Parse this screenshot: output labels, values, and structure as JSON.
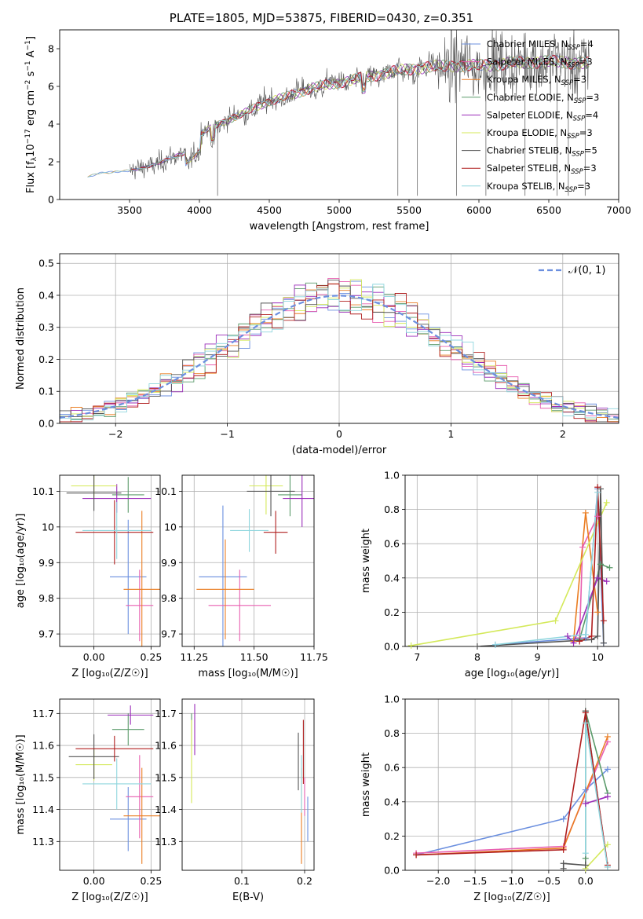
{
  "title": "PLATE=1805, MJD=53875, FIBERID=0430, z=0.351",
  "colors": {
    "series": [
      "#6b8fdf",
      "#e85fb0",
      "#ea7d22",
      "#5a9a6a",
      "#9b2cba",
      "#d4e95a",
      "#545454",
      "#b01f1f",
      "#8fd6de"
    ],
    "normal": "#6b8fdf",
    "grid": "#b0b0b0"
  },
  "series_names": [
    "Chabrier MILES",
    "Salpeter MILES",
    "Kroupa MILES",
    "Chabrier ELODIE",
    "Salpeter ELODIE",
    "Kroupa ELODIE",
    "Chabrier STELIB",
    "Salpeter STELIB",
    "Kroupa STELIB"
  ],
  "nssp": [
    4,
    3,
    3,
    3,
    4,
    3,
    5,
    3,
    3
  ],
  "nssp_label": "SSP",
  "chart_data": [
    {
      "id": "spectrum",
      "type": "line",
      "title": "PLATE=1805, MJD=53875, FIBERID=0430, z=0.351",
      "xlabel": "wavelength [Angstrom, rest frame]",
      "ylabel_parts": [
        "Flux [f",
        "λ",
        "10",
        "−17",
        " erg cm",
        "−2",
        " s",
        "−1",
        " A",
        "−1",
        "]"
      ],
      "xlim": [
        3000,
        7000
      ],
      "ylim": [
        0,
        9
      ],
      "xticks": [
        3500,
        4000,
        4500,
        5000,
        5500,
        6000,
        6500,
        7000
      ],
      "yticks": [
        0,
        2,
        4,
        6,
        8
      ],
      "legend": "upper right",
      "grid": false,
      "continuum": {
        "x": [
          3200,
          3300,
          3400,
          3500,
          3600,
          3700,
          3800,
          3900,
          4000,
          4100,
          4200,
          4300,
          4400,
          4500,
          4600,
          4800,
          5000,
          5200,
          5400,
          5600,
          5800,
          6000,
          6200,
          6400,
          6600,
          6800
        ],
        "y": [
          1.2,
          1.4,
          1.5,
          1.5,
          1.7,
          1.9,
          2.2,
          2.5,
          3.4,
          3.9,
          4.2,
          4.5,
          4.9,
          5.2,
          5.4,
          5.9,
          6.2,
          6.5,
          6.8,
          7.0,
          7.1,
          7.1,
          7.2,
          7.3,
          7.3,
          7.2
        ]
      }
    },
    {
      "id": "residuals",
      "type": "histogram",
      "xlabel": "(data-model)/error",
      "ylabel": "Normed distribution",
      "xlim": [
        -2.5,
        2.5
      ],
      "ylim": [
        0,
        0.53
      ],
      "xticks": [
        -2,
        -1,
        0,
        1,
        2
      ],
      "yticks": [
        0.0,
        0.1,
        0.2,
        0.3,
        0.4,
        0.5
      ],
      "grid": true,
      "legend": "upper right",
      "legend_label": "𝒩(0, 1)",
      "bin_edges": [
        -2.5,
        -2.4,
        -2.3,
        -2.2,
        -2.1,
        -2.0,
        -1.9,
        -1.8,
        -1.7,
        -1.6,
        -1.5,
        -1.4,
        -1.3,
        -1.2,
        -1.1,
        -1.0,
        -0.9,
        -0.8,
        -0.7,
        -0.6,
        -0.5,
        -0.4,
        -0.3,
        -0.2,
        -0.1,
        0.0,
        0.1,
        0.2,
        0.3,
        0.4,
        0.5,
        0.6,
        0.7,
        0.8,
        0.9,
        1.0,
        1.1,
        1.2,
        1.3,
        1.4,
        1.5,
        1.6,
        1.7,
        1.8,
        1.9,
        2.0,
        2.1,
        2.2,
        2.3,
        2.4,
        2.5
      ],
      "normal_curve": {
        "mu": 0,
        "sigma": 1
      }
    },
    {
      "id": "z_age",
      "type": "errorbar",
      "xlabel": "Z [log₁₀(Z/Z☉)]",
      "ylabel": "age  [log₁₀(age/yr)]",
      "xlim": [
        -0.15,
        0.29
      ],
      "ylim": [
        9.665,
        10.145
      ],
      "xticks": [
        0.0,
        0.25
      ],
      "xticklabels": [
        "0.00",
        "0.25"
      ],
      "yticks": [
        9.7,
        9.8,
        9.9,
        10.0,
        10.1
      ],
      "grid": true,
      "points": [
        {
          "x": 0.15,
          "xerr": 0.08,
          "y": 9.86,
          "yerr": 0.16
        },
        {
          "x": 0.2,
          "xerr": 0.06,
          "y": 9.78,
          "yerr": 0.1
        },
        {
          "x": 0.21,
          "xerr": 0.08,
          "y": 9.825,
          "yerr": 0.22
        },
        {
          "x": 0.15,
          "xerr": 0.07,
          "y": 10.09,
          "yerr": 0.05
        },
        {
          "x": 0.1,
          "xerr": 0.15,
          "y": 10.08,
          "yerr": 0.04
        },
        {
          "x": 0.0,
          "xerr": 0.1,
          "y": 10.115,
          "yerr": 0.03
        },
        {
          "x": 0.0,
          "xerr": 0.12,
          "y": 10.095,
          "yerr": 0.05
        },
        {
          "x": 0.09,
          "xerr": 0.17,
          "y": 9.985,
          "yerr": 0.09
        },
        {
          "x": 0.1,
          "xerr": 0.15,
          "y": 9.99,
          "yerr": 0.08
        }
      ]
    },
    {
      "id": "mass_age",
      "type": "errorbar",
      "xlabel": "mass [log₁₀(M/M☉)]",
      "ylabel": "",
      "xlim": [
        11.2,
        11.75
      ],
      "ylim": [
        9.665,
        10.145
      ],
      "xticks": [
        11.25,
        11.5,
        11.75
      ],
      "xticklabels": [
        "11.25",
        "11.50",
        "11.75"
      ],
      "yticks": [
        9.7,
        9.8,
        9.9,
        10.0,
        10.1
      ],
      "grid": true,
      "points": [
        {
          "x": 11.37,
          "xerr": 0.1,
          "y": 9.86,
          "yerr": 0.2
        },
        {
          "x": 11.44,
          "xerr": 0.13,
          "y": 9.78,
          "yerr": 0.1
        },
        {
          "x": 11.38,
          "xerr": 0.12,
          "y": 9.825,
          "yerr": 0.14
        },
        {
          "x": 11.65,
          "xerr": 0.05,
          "y": 10.09,
          "yerr": 0.06
        },
        {
          "x": 11.7,
          "xerr": 0.08,
          "y": 10.08,
          "yerr": 0.08
        },
        {
          "x": 11.55,
          "xerr": 0.07,
          "y": 10.115,
          "yerr": 0.08
        },
        {
          "x": 11.57,
          "xerr": 0.1,
          "y": 10.1,
          "yerr": 0.07
        },
        {
          "x": 11.59,
          "xerr": 0.05,
          "y": 9.985,
          "yerr": 0.06
        },
        {
          "x": 11.48,
          "xerr": 0.08,
          "y": 9.99,
          "yerr": 0.06
        }
      ]
    },
    {
      "id": "age_weight",
      "type": "line",
      "xlabel": "age  [log₁₀(age/yr)]",
      "ylabel": "mass weight",
      "xlim": [
        6.8,
        10.35
      ],
      "ylim": [
        0,
        1
      ],
      "xticks": [
        7,
        8,
        9,
        10
      ],
      "yticks": [
        0.0,
        0.2,
        0.4,
        0.6,
        0.8,
        1.0
      ],
      "grid": true,
      "series": [
        {
          "x": [
            8.3,
            9.8,
            10.0,
            10.1
          ],
          "y": [
            0.01,
            0.05,
            0.92,
            0.02
          ]
        },
        {
          "x": [
            9.7,
            9.75,
            10.0
          ],
          "y": [
            0.05,
            0.58,
            0.76
          ]
        },
        {
          "x": [
            9.6,
            9.8,
            10.0
          ],
          "y": [
            0.03,
            0.78,
            0.2
          ]
        },
        {
          "x": [
            9.7,
            10.05,
            10.2
          ],
          "y": [
            0.04,
            0.48,
            0.46
          ]
        },
        {
          "x": [
            9.5,
            9.6,
            10.0,
            10.15
          ],
          "y": [
            0.06,
            0.02,
            0.4,
            0.38
          ]
        },
        {
          "x": [
            6.9,
            9.3,
            10.15
          ],
          "y": [
            0.005,
            0.15,
            0.84
          ]
        },
        {
          "x": [
            8.0,
            9.9,
            10.0,
            10.05,
            10.1
          ],
          "y": [
            0.0,
            0.04,
            0.06,
            0.92,
            0.02
          ]
        },
        {
          "x": [
            9.7,
            9.9,
            10.0,
            10.1
          ],
          "y": [
            0.03,
            0.06,
            0.93,
            0.15
          ]
        },
        {
          "x": [
            8.3,
            9.8,
            10.0
          ],
          "y": [
            0.01,
            0.07,
            0.9
          ]
        }
      ]
    },
    {
      "id": "z_mass",
      "type": "errorbar",
      "xlabel": "Z [log₁₀(Z/Z☉)]",
      "ylabel": "mass [log₁₀(M/M☉)]",
      "xlim": [
        -0.15,
        0.29
      ],
      "ylim": [
        11.21,
        11.745
      ],
      "xticks": [
        0.0,
        0.25
      ],
      "xticklabels": [
        "0.00",
        "0.25"
      ],
      "yticks": [
        11.3,
        11.4,
        11.5,
        11.6,
        11.7
      ],
      "grid": true,
      "points": [
        {
          "x": 0.15,
          "xerr": 0.08,
          "y": 11.37,
          "yerr": 0.1
        },
        {
          "x": 0.2,
          "xerr": 0.06,
          "y": 11.44,
          "yerr": 0.13
        },
        {
          "x": 0.21,
          "xerr": 0.08,
          "y": 11.38,
          "yerr": 0.15
        },
        {
          "x": 0.15,
          "xerr": 0.07,
          "y": 11.65,
          "yerr": 0.05
        },
        {
          "x": 0.16,
          "xerr": 0.1,
          "y": 11.695,
          "yerr": 0.03
        },
        {
          "x": 0.0,
          "xerr": 0.08,
          "y": 11.54,
          "yerr": 0.05
        },
        {
          "x": 0.0,
          "xerr": 0.11,
          "y": 11.565,
          "yerr": 0.07
        },
        {
          "x": 0.09,
          "xerr": 0.17,
          "y": 11.59,
          "yerr": 0.04
        },
        {
          "x": 0.1,
          "xerr": 0.15,
          "y": 11.48,
          "yerr": 0.08
        }
      ]
    },
    {
      "id": "ebv_mass",
      "type": "errorbar",
      "xlabel": "E(B-V)",
      "ylabel": "",
      "xlim": [
        0.005,
        0.215
      ],
      "ylim": [
        11.21,
        11.745
      ],
      "xticks": [
        0.1,
        0.2
      ],
      "xticklabels": [
        "0.1",
        "0.2"
      ],
      "yticks": [
        11.3,
        11.4,
        11.5,
        11.6,
        11.7
      ],
      "grid": true,
      "points": [
        {
          "x": 0.205,
          "xerr": 0.0,
          "y": 11.37,
          "yerr": 0.07
        },
        {
          "x": 0.2,
          "xerr": 0.0,
          "y": 11.44,
          "yerr": 0.06
        },
        {
          "x": 0.195,
          "xerr": 0.0,
          "y": 11.38,
          "yerr": 0.15
        },
        {
          "x": 0.02,
          "xerr": 0.0,
          "y": 11.65,
          "yerr": 0.05
        },
        {
          "x": 0.025,
          "xerr": 0.0,
          "y": 11.65,
          "yerr": 0.08
        },
        {
          "x": 0.02,
          "xerr": 0.0,
          "y": 11.55,
          "yerr": 0.13
        },
        {
          "x": 0.19,
          "xerr": 0.0,
          "y": 11.55,
          "yerr": 0.09
        },
        {
          "x": 0.198,
          "xerr": 0.0,
          "y": 11.58,
          "yerr": 0.1
        },
        {
          "x": 0.195,
          "xerr": 0.0,
          "y": 11.48,
          "yerr": 0.09
        }
      ]
    },
    {
      "id": "z_weight",
      "type": "line",
      "xlabel": "Z [log₁₀(Z/Z☉)]",
      "ylabel": "mass weight",
      "xlim": [
        -2.45,
        0.45
      ],
      "ylim": [
        0,
        1
      ],
      "xticks": [
        -2.0,
        -1.5,
        -1.0,
        -0.5,
        0.0
      ],
      "xticklabels": [
        "−2.0",
        "−1.5",
        "−1.0",
        "−0.5",
        "0.0"
      ],
      "yticks": [
        0.0,
        0.2,
        0.4,
        0.6,
        0.8,
        1.0
      ],
      "grid": true,
      "series": [
        {
          "x": [
            -2.3,
            -0.3,
            0.0,
            0.3
          ],
          "y": [
            0.09,
            0.3,
            0.47,
            0.59
          ]
        },
        {
          "x": [
            -2.3,
            -0.3,
            0.3
          ],
          "y": [
            0.1,
            0.14,
            0.75
          ]
        },
        {
          "x": [
            -2.3,
            -0.3,
            0.3
          ],
          "y": [
            0.09,
            0.13,
            0.78
          ]
        },
        {
          "x": [
            0.0,
            0.0,
            0.3
          ],
          "y": [
            0.07,
            0.93,
            0.45
          ]
        },
        {
          "x": [
            0.0,
            0.3
          ],
          "y": [
            0.39,
            0.43
          ]
        },
        {
          "x": [
            0.0,
            0.3
          ],
          "y": [
            0.01,
            0.15
          ]
        },
        {
          "x": [
            -0.3,
            -0.3,
            0.0,
            0.0,
            0.3
          ],
          "y": [
            0.01,
            0.04,
            0.03,
            0.93,
            0.02
          ]
        },
        {
          "x": [
            -2.3,
            -0.3,
            0.0,
            0.3
          ],
          "y": [
            0.09,
            0.12,
            0.92,
            0.03
          ]
        },
        {
          "x": [
            0.0,
            0.0,
            0.3
          ],
          "y": [
            0.1,
            0.86,
            0.02
          ]
        }
      ]
    }
  ]
}
